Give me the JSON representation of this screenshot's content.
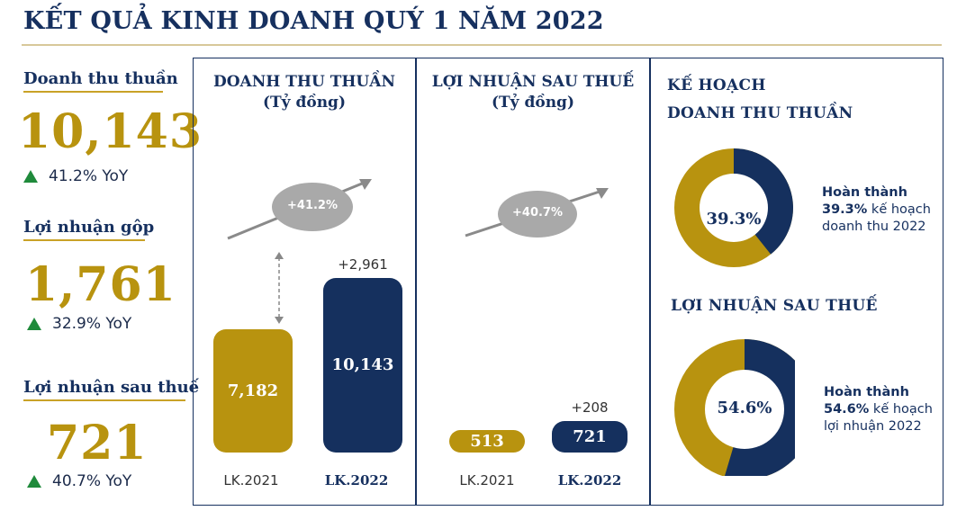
{
  "title": "KẾT QUẢ KINH DOANH QUÝ 1 NĂM 2022",
  "kpis": [
    {
      "label": "Doanh thu thuần",
      "value": "10,143",
      "yoy": "41.2% YoY"
    },
    {
      "label": "Lợi nhuận gộp",
      "value": "1,761",
      "yoy": "32.9% YoY"
    },
    {
      "label": "Lợi nhuận sau thuế",
      "value": "721",
      "yoy": "40.7% YoY"
    }
  ],
  "colors": {
    "gold": "#b8930f",
    "navy": "#15305e",
    "up": "#1f8a3b",
    "bubble": "#a9a9a9"
  },
  "chart_data": [
    {
      "type": "bar",
      "title": "DOANH THU THUẦN",
      "subtitle": "(Tỷ đồng)",
      "categories": [
        "LK.2021",
        "LK.2022"
      ],
      "values": [
        7182,
        10143
      ],
      "value_labels": [
        "7,182",
        "10,143"
      ],
      "delta_label": "+2,961",
      "growth_label": "+41.2%",
      "ylim": [
        0,
        11500
      ],
      "grid": false
    },
    {
      "type": "bar",
      "title": "LỢI NHUẬN SAU THUẾ",
      "subtitle": "(Tỷ đồng)",
      "categories": [
        "LK.2021",
        "LK.2022"
      ],
      "values": [
        513,
        721
      ],
      "value_labels": [
        "513",
        "721"
      ],
      "delta_label": "+208",
      "growth_label": "+40.7%",
      "ylim": [
        0,
        1180
      ],
      "grid": false
    },
    {
      "type": "pie",
      "title": "KẾ HOẠCH",
      "subtitle": "DOANH THU THUẦN",
      "values": [
        39.3,
        60.7
      ],
      "center_label": "39.3%",
      "note": {
        "bold": "Hoàn thành",
        "line2_bold": "39.3%",
        "line2_rest": " kế hoạch",
        "line3": "doanh thu 2022"
      }
    },
    {
      "type": "pie",
      "title": "LỢI NHUẬN SAU THUẾ",
      "values": [
        54.6,
        45.4
      ],
      "center_label": "54.6%",
      "note": {
        "bold": "Hoàn thành",
        "line2_bold": "54.6%",
        "line2_rest": " kế hoạch",
        "line3": "lợi nhuận 2022"
      }
    }
  ]
}
